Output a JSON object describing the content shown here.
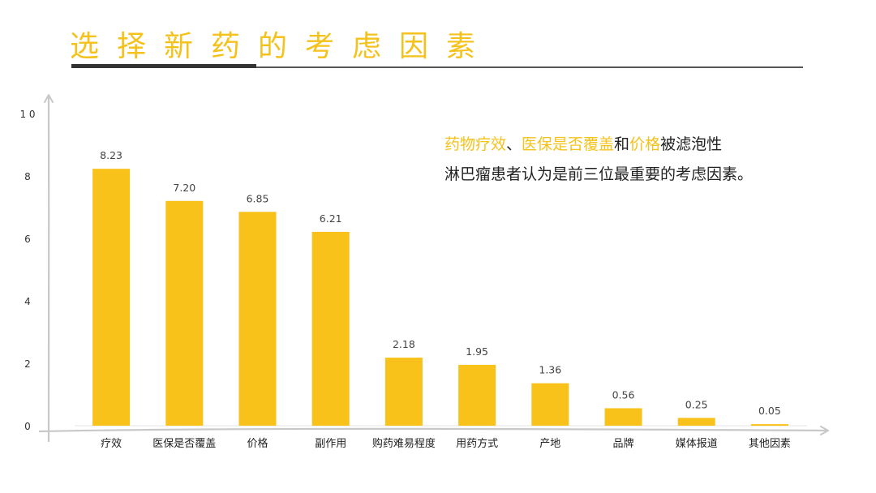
{
  "page": {
    "title": "选择新药的考虑因素",
    "note": {
      "line1": [
        {
          "text": "药物疗效",
          "highlight": true
        },
        {
          "text": "、",
          "highlight": false
        },
        {
          "text": "医保是否覆盖",
          "highlight": true
        },
        {
          "text": "和",
          "highlight": false
        },
        {
          "text": "价格",
          "highlight": true
        },
        {
          "text": "被滤泡性",
          "highlight": false
        }
      ],
      "line2": "淋巴瘤患者认为是前三位最重要的考虑因素。"
    }
  },
  "colors": {
    "accent": "#F5C21B",
    "bar": "#F9C21B",
    "axis": "#C8C8C8",
    "text": "#222222"
  },
  "chart_data": {
    "type": "bar",
    "title": "",
    "xlabel": "",
    "ylabel": "",
    "ylim": [
      0,
      10
    ],
    "yticks": [
      0,
      2,
      4,
      6,
      8,
      10
    ],
    "ytick_labels": [
      "0",
      "2",
      "4",
      "6",
      "8",
      "1 0"
    ],
    "grid": false,
    "categories": [
      "疗效",
      "医保是否覆盖",
      "价格",
      "副作用",
      "购药难易程度",
      "用药方式",
      "产地",
      "品牌",
      "媒体报道",
      "其他因素"
    ],
    "values": [
      8.23,
      7.2,
      6.85,
      6.21,
      2.18,
      1.95,
      1.36,
      0.56,
      0.25,
      0.05
    ],
    "value_labels": [
      "8.23",
      "7.20",
      "6.85",
      "6.21",
      "2.18",
      "1.95",
      "1.36",
      "0.56",
      "0.25",
      "0.05"
    ]
  }
}
